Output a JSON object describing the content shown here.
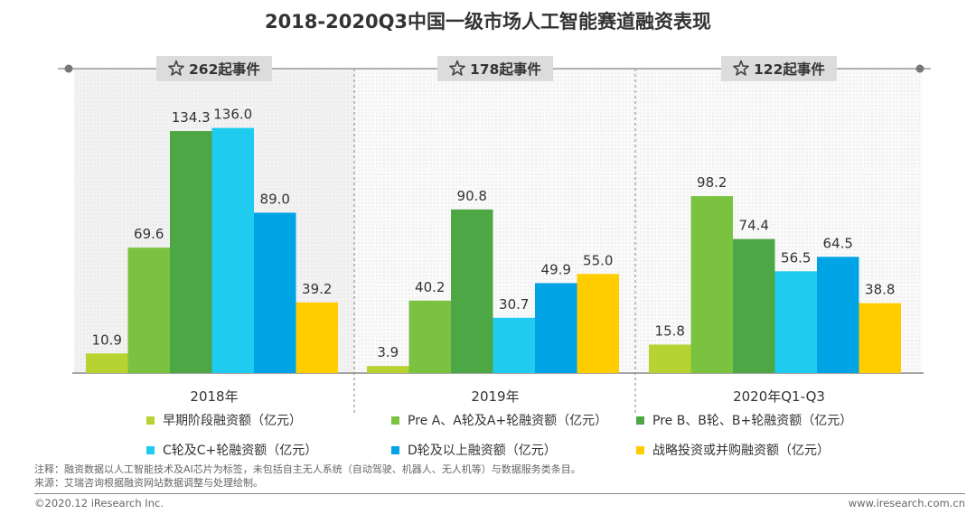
{
  "title": "2018-2020Q3中国一级市场人工智能赛道融资表现",
  "chart_data": {
    "type": "bar",
    "title": "2018-2020Q3中国一级市场人工智能赛道融资表现",
    "categories": [
      "2018年",
      "2019年",
      "2020年Q1-Q3"
    ],
    "events": [
      "262起事件",
      "178起事件",
      "122起事件"
    ],
    "series": [
      {
        "name": "早期阶段融资额（亿元）",
        "color": "#b6d332",
        "values": [
          10.9,
          3.9,
          15.8
        ]
      },
      {
        "name": "Pre A、A轮及A+轮融资额（亿元）",
        "color": "#7cc241",
        "values": [
          69.6,
          40.2,
          98.2
        ]
      },
      {
        "name": "Pre B、B轮、B+轮融资额（亿元）",
        "color": "#4da745",
        "values": [
          134.3,
          90.8,
          74.4
        ]
      },
      {
        "name": "C轮及C+轮融资额（亿元）",
        "color": "#1fcbef",
        "values": [
          136.0,
          30.7,
          56.5
        ]
      },
      {
        "name": "D轮及以上融资额（亿元）",
        "color": "#00a3e4",
        "values": [
          89.0,
          49.9,
          64.5
        ]
      },
      {
        "name": "战略投资或并购融资额（亿元）",
        "color": "#ffcc00",
        "values": [
          39.2,
          55.0,
          38.8
        ]
      }
    ],
    "ylim": [
      0,
      150
    ],
    "xlabel": "",
    "ylabel": "",
    "grid": false,
    "legend": "bottom"
  },
  "notes": {
    "line1": "注释：融资数据以人工智能技术及AI芯片为标签，未包括自主无人系统（自动驾驶、机器人、无人机等）与数据服务类条目。",
    "line2": "来源：艾瑞咨询根据融资网站数据调整与处理绘制。"
  },
  "footer": {
    "copyright": "©2020.12 iResearch Inc.",
    "website": "www.iresearch.com.cn"
  },
  "colors": {
    "title": "#333333",
    "badge_bg": "#dcdcdc",
    "panel_bg": "#f2f2f2",
    "axis": "#888888"
  }
}
